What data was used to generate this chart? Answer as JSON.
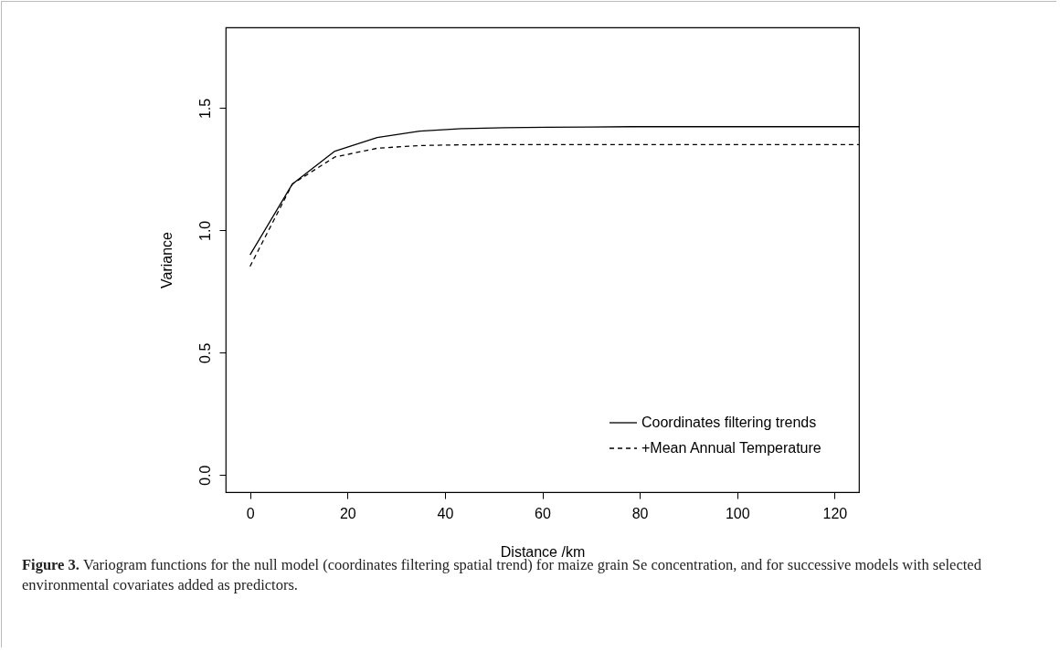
{
  "chart_data": {
    "type": "line",
    "xlabel": "Distance /km",
    "ylabel": "Variance",
    "x": [
      0,
      8.7,
      17.4,
      26.1,
      34.8,
      43.5,
      52.2,
      60.9,
      69.6,
      78.3,
      87,
      95.7,
      104.4,
      113.1,
      121.8,
      125
    ],
    "series": [
      {
        "name": "Coordinates filtering trends",
        "color": "#000000",
        "line_style": "solid",
        "values": [
          0.9,
          1.19,
          1.324,
          1.38,
          1.406,
          1.416,
          1.42,
          1.422,
          1.423,
          1.424,
          1.424,
          1.424,
          1.424,
          1.424,
          1.424,
          1.424
        ]
      },
      {
        "name": "+Mean Annual Temperature",
        "color": "#000000",
        "line_style": "dashed",
        "values": [
          0.853,
          1.19,
          1.3,
          1.336,
          1.347,
          1.35,
          1.351,
          1.351,
          1.351,
          1.351,
          1.351,
          1.351,
          1.351,
          1.351,
          1.351,
          1.351
        ]
      }
    ],
    "xlim": [
      -5,
      125
    ],
    "ylim": [
      -0.07,
      1.83
    ],
    "xticks": [
      0,
      20,
      40,
      60,
      80,
      100,
      120
    ],
    "yticks": [
      {
        "value": 0,
        "label": "0.0"
      },
      {
        "value": 0.5,
        "label": "0.5"
      },
      {
        "value": 1,
        "label": "1.0"
      },
      {
        "value": 1.5,
        "label": "1.5"
      }
    ],
    "grid": false,
    "legend": "bottom right",
    "marker": "none",
    "annotations": [
      "Figure 3.",
      "Variogram functions for the null model (coordinates filtering spatial trend) for maize grain Se concentration, and for successive models with selected environmental covariates added as predictors."
    ]
  }
}
